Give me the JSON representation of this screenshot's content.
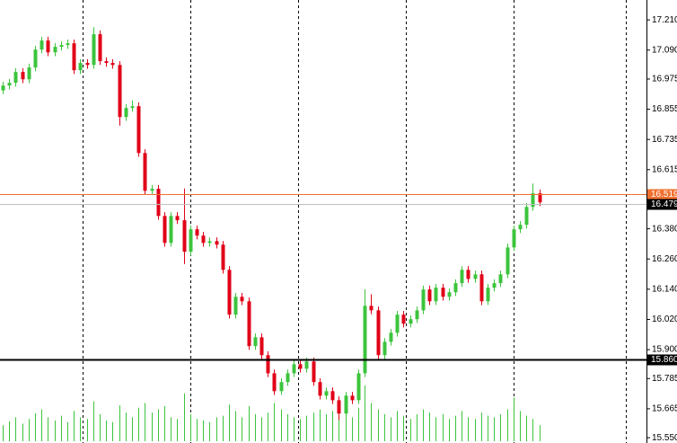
{
  "chart_data": {
    "type": "candlestick",
    "ylim": [
      15.529,
      17.289
    ],
    "yticks": [
      {
        "value": 17.21,
        "label": "17.210"
      },
      {
        "value": 17.09,
        "label": "17.090"
      },
      16.975,
      16.855,
      16.735,
      16.615,
      {
        "value": 16.38,
        "label": "16.380"
      },
      {
        "value": 16.26,
        "label": "16.260"
      },
      {
        "value": 16.14,
        "label": "16.140"
      },
      {
        "value": 16.02,
        "label": "16.020"
      },
      {
        "value": 15.9,
        "label": "15.900"
      },
      15.785,
      15.665,
      {
        "value": 15.55,
        "label": "15.550"
      }
    ],
    "up_color": "#3cc43c",
    "down_color": "#e00018",
    "volume_color": "#3cc43c",
    "levels": [
      {
        "value": 16.519,
        "color": "#f07030",
        "line_color": "#f07030"
      },
      {
        "value": 16.479,
        "color": "#000000",
        "line_color": "#c0c0c0"
      },
      {
        "value": 15.86,
        "label": "15.860",
        "color": "#000000",
        "line_color": "#000000"
      }
    ],
    "open": [
      16.93,
      16.949,
      16.96,
      17.003,
      16.974,
      17.021,
      17.092,
      17.128,
      17.081,
      17.103,
      17.11,
      17.117,
      17.01,
      17.039,
      17.031,
      17.153,
      17.046,
      17.039,
      17.031,
      16.824,
      16.86,
      16.867,
      16.681,
      16.531,
      16.539,
      16.431,
      16.324,
      16.431,
      16.414,
      16.289,
      16.378,
      16.353,
      16.324,
      16.331,
      16.317,
      16.217,
      16.039,
      16.11,
      16.092,
      15.914,
      15.949,
      15.878,
      15.806,
      15.735,
      15.771,
      15.806,
      15.842,
      15.824,
      15.853,
      15.771,
      15.717,
      15.735,
      15.699,
      15.646,
      15.717,
      15.699,
      15.806,
      16.074,
      16.056,
      15.878,
      15.931,
      15.967,
      16.039,
      16.003,
      16.021,
      16.056,
      16.139,
      16.092,
      16.146,
      16.11,
      16.128,
      16.164,
      16.217,
      16.181,
      16.199,
      16.092,
      16.146,
      16.164,
      16.199,
      16.306,
      16.378,
      16.396,
      16.467,
      16.521
    ],
    "high": [
      16.964,
      16.975,
      17.018,
      17.018,
      17.036,
      17.107,
      17.143,
      17.143,
      17.118,
      17.125,
      17.132,
      17.132,
      17.054,
      17.054,
      17.181,
      17.168,
      17.061,
      17.054,
      17.046,
      16.875,
      16.89,
      16.882,
      16.696,
      16.554,
      16.554,
      16.446,
      16.446,
      16.446,
      16.54,
      16.393,
      16.393,
      16.368,
      16.346,
      16.346,
      16.332,
      16.232,
      16.125,
      16.125,
      16.107,
      15.964,
      15.964,
      15.893,
      15.821,
      15.786,
      15.821,
      15.857,
      15.857,
      15.868,
      15.868,
      15.786,
      15.75,
      15.75,
      15.714,
      15.732,
      15.732,
      15.821,
      16.14,
      16.12,
      16.071,
      15.946,
      15.982,
      16.054,
      16.054,
      16.036,
      16.071,
      16.154,
      16.154,
      16.161,
      16.161,
      16.143,
      16.179,
      16.232,
      16.232,
      16.214,
      16.214,
      16.161,
      16.179,
      16.214,
      16.321,
      16.393,
      16.411,
      16.482,
      16.56,
      16.536
    ],
    "low": [
      16.915,
      16.934,
      16.945,
      16.959,
      16.959,
      17.006,
      17.077,
      17.066,
      17.066,
      17.088,
      17.095,
      16.995,
      16.995,
      17.016,
      17.016,
      17.031,
      17.024,
      17.016,
      16.79,
      16.809,
      16.845,
      16.666,
      16.516,
      16.516,
      16.416,
      16.309,
      16.309,
      16.399,
      16.24,
      16.274,
      16.338,
      16.309,
      16.309,
      16.302,
      16.202,
      16.024,
      16.024,
      16.077,
      15.899,
      15.899,
      15.863,
      15.791,
      15.72,
      15.72,
      15.756,
      15.791,
      15.809,
      15.809,
      15.756,
      15.702,
      15.702,
      15.684,
      15.62,
      15.631,
      15.684,
      15.684,
      15.791,
      16.041,
      15.863,
      15.863,
      15.916,
      15.952,
      15.988,
      15.988,
      16.006,
      16.041,
      16.077,
      16.077,
      16.095,
      16.095,
      16.113,
      16.149,
      16.166,
      16.166,
      16.077,
      16.077,
      16.131,
      16.149,
      16.184,
      16.291,
      16.363,
      16.381,
      16.452,
      16.47
    ],
    "close": [
      16.949,
      16.96,
      17.003,
      16.974,
      17.021,
      17.092,
      17.128,
      17.081,
      17.103,
      17.11,
      17.117,
      17.01,
      17.039,
      17.031,
      17.153,
      17.046,
      17.039,
      17.031,
      16.824,
      16.86,
      16.867,
      16.681,
      16.531,
      16.539,
      16.431,
      16.324,
      16.431,
      16.414,
      16.289,
      16.378,
      16.353,
      16.324,
      16.331,
      16.317,
      16.217,
      16.039,
      16.11,
      16.092,
      15.914,
      15.949,
      15.878,
      15.806,
      15.735,
      15.771,
      15.806,
      15.842,
      15.824,
      15.853,
      15.771,
      15.717,
      15.735,
      15.699,
      15.646,
      15.717,
      15.699,
      15.806,
      16.074,
      16.056,
      15.878,
      15.931,
      15.967,
      16.039,
      16.003,
      16.021,
      16.056,
      16.139,
      16.092,
      16.146,
      16.11,
      16.128,
      16.164,
      16.217,
      16.181,
      16.199,
      16.092,
      16.146,
      16.164,
      16.199,
      16.306,
      16.378,
      16.396,
      16.467,
      16.521,
      16.485
    ],
    "volume": [
      20,
      25,
      30,
      22,
      28,
      35,
      40,
      30,
      26,
      32,
      24,
      38,
      30,
      28,
      50,
      34,
      26,
      24,
      45,
      36,
      30,
      42,
      48,
      36,
      40,
      44,
      30,
      28,
      60,
      34,
      28,
      26,
      24,
      30,
      32,
      46,
      38,
      30,
      44,
      34,
      30,
      36,
      48,
      40,
      34,
      30,
      28,
      32,
      36,
      40,
      34,
      38,
      44,
      36,
      30,
      42,
      70,
      48,
      40,
      34,
      30,
      38,
      32,
      28,
      34,
      40,
      36,
      30,
      34,
      28,
      32,
      38,
      30,
      28,
      36,
      32,
      30,
      34,
      40,
      55,
      38,
      32,
      28,
      20
    ]
  }
}
